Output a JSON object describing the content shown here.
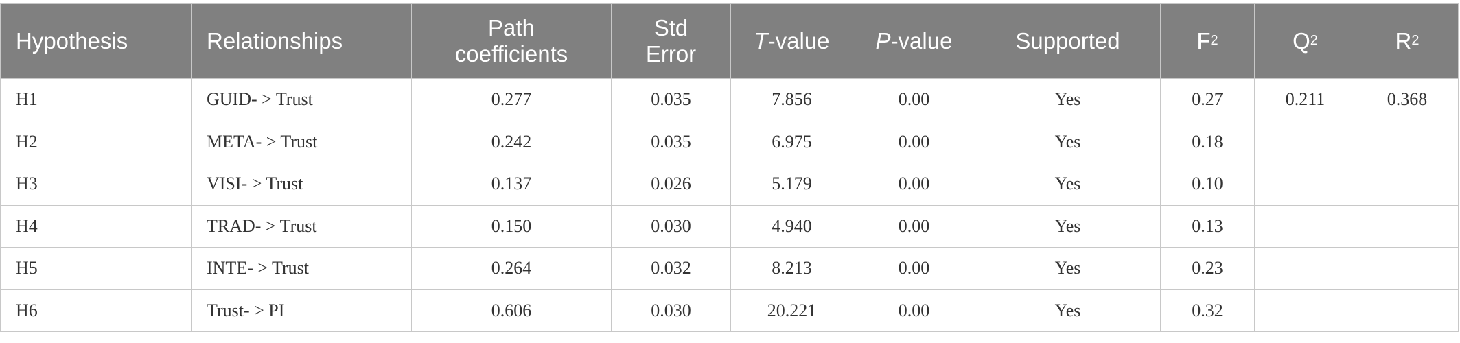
{
  "table": {
    "headers": {
      "hypothesis": "Hypothesis",
      "relationships": "Relationships",
      "path_line1": "Path",
      "path_line2": "coefficients",
      "std_line1": "Std",
      "std_line2": "Error",
      "t_italic": "T",
      "t_rest": "-value",
      "p_italic": "P",
      "p_rest": "-value",
      "supported": "Supported",
      "f_base": "F",
      "f_sup": "2",
      "q_base": "Q",
      "q_sup": "2",
      "r_base": "R",
      "r_sup": "2"
    },
    "rows": [
      {
        "hypothesis": "H1",
        "relationship": "GUID- > Trust",
        "path": "0.277",
        "std": "0.035",
        "t": "7.856",
        "p": "0.00",
        "supported": "Yes",
        "f2": "0.27",
        "q2": "0.211",
        "r2": "0.368"
      },
      {
        "hypothesis": "H2",
        "relationship": "META- > Trust",
        "path": "0.242",
        "std": "0.035",
        "t": "6.975",
        "p": "0.00",
        "supported": "Yes",
        "f2": "0.18",
        "q2": "",
        "r2": ""
      },
      {
        "hypothesis": "H3",
        "relationship": "VISI- > Trust",
        "path": "0.137",
        "std": "0.026",
        "t": "5.179",
        "p": "0.00",
        "supported": "Yes",
        "f2": "0.10",
        "q2": "",
        "r2": ""
      },
      {
        "hypothesis": "H4",
        "relationship": "TRAD- > Trust",
        "path": "0.150",
        "std": "0.030",
        "t": "4.940",
        "p": "0.00",
        "supported": "Yes",
        "f2": "0.13",
        "q2": "",
        "r2": ""
      },
      {
        "hypothesis": "H5",
        "relationship": "INTE- > Trust",
        "path": "0.264",
        "std": "0.032",
        "t": "8.213",
        "p": "0.00",
        "supported": "Yes",
        "f2": "0.23",
        "q2": "",
        "r2": ""
      },
      {
        "hypothesis": "H6",
        "relationship": "Trust- > PI",
        "path": "0.606",
        "std": "0.030",
        "t": "20.221",
        "p": "0.00",
        "supported": "Yes",
        "f2": "0.32",
        "q2": "",
        "r2": ""
      }
    ]
  },
  "colors": {
    "header_bg": "#808080",
    "header_text": "#ffffff",
    "border": "#c8c8c8",
    "body_text": "#333333"
  }
}
